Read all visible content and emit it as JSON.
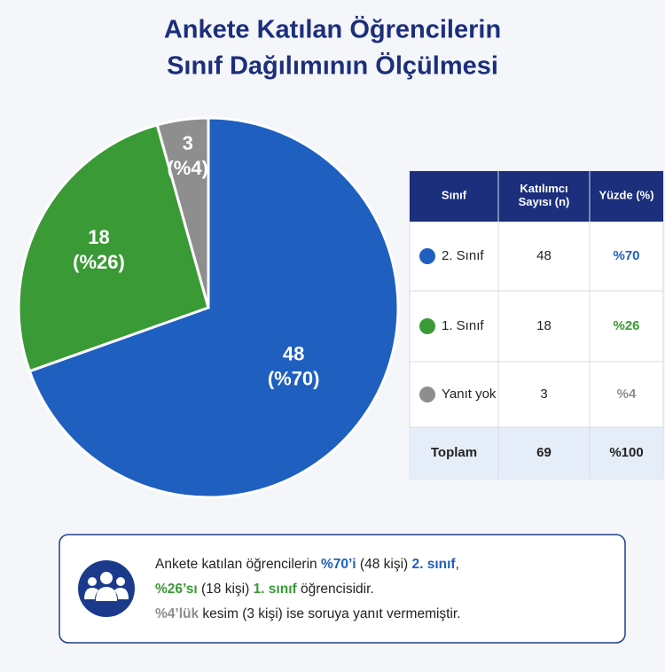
{
  "chart_data": {
    "type": "pie",
    "title": [
      "Ankete Katılan Öğrencilerin",
      "Sınıf Dağılımının Ölçülmesi"
    ],
    "categories": [
      "2. Sınıf",
      "1. Sınıf",
      "Yanıt yok"
    ],
    "values": [
      48,
      18,
      3
    ],
    "percent_labels": [
      "(%70)",
      "(%26)",
      "(%4)"
    ],
    "colors": [
      "#1f5fc0",
      "#3a9a35",
      "#8e8e8e"
    ]
  },
  "table": {
    "headers": [
      "Sınıf",
      "Katılımcı Sayısı (n)",
      "Yüzde (%)"
    ],
    "rows": [
      [
        "2. Sınıf",
        "48",
        "%70"
      ],
      [
        "1. Sınıf",
        "18",
        "%26"
      ],
      [
        "Yanıt yok",
        "3",
        "%4"
      ]
    ],
    "total": [
      "Toplam",
      "69",
      "%100"
    ]
  },
  "summary": {
    "lines": [
      [
        {
          "text": "Ankete katılan öğrencilerin "
        },
        {
          "text": "%70’i",
          "color": "#1f5fc0"
        },
        {
          "text": " (48 kişi) "
        },
        {
          "text": "2. sınıf",
          "color": "#1f5fc0"
        },
        {
          "text": ","
        }
      ],
      [
        {
          "text": "%26’sı",
          "color": "#3a9a35"
        },
        {
          "text": " (18 kişi) "
        },
        {
          "text": "1. sınıf",
          "color": "#3a9a35"
        },
        {
          "text": " öğrencisidir."
        }
      ],
      [
        {
          "text": "%4’lük",
          "color": "#8e8e8e"
        },
        {
          "text": " kesim (3 kişi) ise soruya yanıt vermemiştir."
        }
      ]
    ]
  }
}
